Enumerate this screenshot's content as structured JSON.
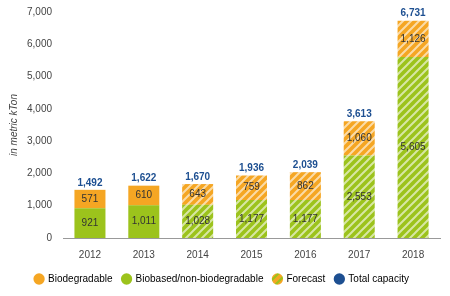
{
  "chart_data": {
    "type": "bar",
    "stacked": true,
    "ylabel": "in metric kTon",
    "categories": [
      "2012",
      "2013",
      "2014",
      "2015",
      "2016",
      "2017",
      "2018"
    ],
    "series": [
      {
        "name": "Biodegradable",
        "color": "#f5a623",
        "values": [
          571,
          610,
          643,
          759,
          862,
          1060,
          1126
        ],
        "value_labels": [
          "571",
          "610",
          "643",
          "759",
          "862",
          "1,060",
          "1,126"
        ]
      },
      {
        "name": "Biobased/non-biodegradable",
        "color": "#9cc31c",
        "values": [
          921,
          1011,
          1028,
          1177,
          1177,
          2553,
          5605
        ],
        "value_labels": [
          "921",
          "1,011",
          "1,028",
          "1,177",
          "1,177",
          "2,553",
          "5,605"
        ]
      }
    ],
    "forecast": {
      "name": "Forecast",
      "categories": [
        "2014",
        "2015",
        "2016",
        "2017",
        "2018"
      ]
    },
    "totals": {
      "name": "Total capacity",
      "color": "#1d4f91",
      "values": [
        1492,
        1622,
        1670,
        1936,
        2039,
        3613,
        6731
      ],
      "value_labels": [
        "1,492",
        "1,622",
        "1,670",
        "1,936",
        "2,039",
        "3,613",
        "6,731"
      ]
    },
    "ylim": [
      0,
      7000
    ],
    "yticks": [
      0,
      {
        "value": 1000,
        "label": "1,000"
      },
      {
        "value": 2000,
        "label": "2,000"
      },
      {
        "value": 3000,
        "label": "3,000"
      },
      {
        "value": 4000,
        "label": "4,000"
      },
      {
        "value": 5000,
        "label": "5,000"
      },
      {
        "value": 6000,
        "label": "6,000"
      },
      {
        "value": 7000,
        "label": "7,000"
      }
    ],
    "grid": false,
    "legend": "bottom",
    "data_labels": true
  }
}
